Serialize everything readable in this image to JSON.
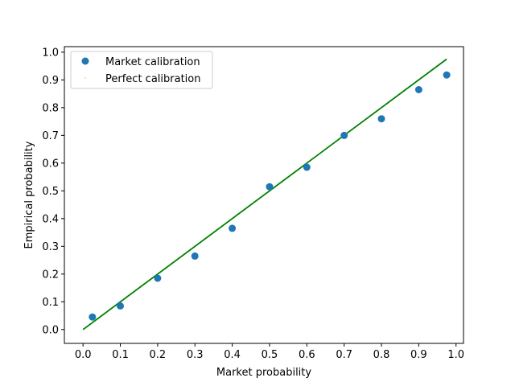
{
  "chart_data": {
    "type": "scatter",
    "title": "",
    "xlabel": "Market probability",
    "ylabel": "Empirical probability",
    "xlim": [
      -0.05,
      1.02
    ],
    "ylim": [
      -0.05,
      1.02
    ],
    "x_ticks": [
      0.0,
      0.1,
      0.2,
      0.3,
      0.4,
      0.5,
      0.6,
      0.7,
      0.8,
      0.9,
      1.0
    ],
    "y_ticks": [
      0.0,
      0.1,
      0.2,
      0.3,
      0.4,
      0.5,
      0.6,
      0.7,
      0.8,
      0.9,
      1.0
    ],
    "x_tick_labels": [
      "0.0",
      "0.1",
      "0.2",
      "0.3",
      "0.4",
      "0.5",
      "0.6",
      "0.7",
      "0.8",
      "0.9",
      "1.0"
    ],
    "y_tick_labels": [
      "0.0",
      "0.1",
      "0.2",
      "0.3",
      "0.4",
      "0.5",
      "0.6",
      "0.7",
      "0.8",
      "0.9",
      "1.0"
    ],
    "grid": false,
    "legend_position": "top-left",
    "series": [
      {
        "name": "Market calibration",
        "kind": "scatter",
        "color": "#1f77b4",
        "points": [
          {
            "x": 0.025,
            "y": 0.045
          },
          {
            "x": 0.1,
            "y": 0.085
          },
          {
            "x": 0.2,
            "y": 0.185
          },
          {
            "x": 0.3,
            "y": 0.265
          },
          {
            "x": 0.4,
            "y": 0.365
          },
          {
            "x": 0.5,
            "y": 0.515
          },
          {
            "x": 0.6,
            "y": 0.585
          },
          {
            "x": 0.7,
            "y": 0.7
          },
          {
            "x": 0.8,
            "y": 0.76
          },
          {
            "x": 0.9,
            "y": 0.865
          },
          {
            "x": 0.975,
            "y": 0.918
          }
        ]
      },
      {
        "name": "Perfect calibration",
        "kind": "line",
        "color": "#008000",
        "legend_color": "#ff7f0e",
        "points": [
          {
            "x": 0.0,
            "y": 0.0
          },
          {
            "x": 0.975,
            "y": 0.975
          }
        ]
      }
    ]
  }
}
